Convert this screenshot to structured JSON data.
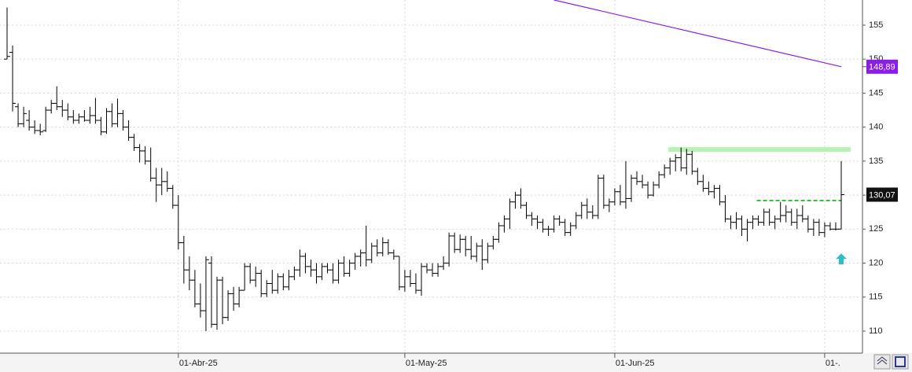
{
  "chart_data": {
    "type": "ohlc",
    "categories": [
      null,
      null,
      null,
      null,
      null,
      null,
      null,
      null,
      null,
      null,
      null,
      null,
      null,
      null,
      null,
      null,
      null,
      null,
      null,
      null,
      null,
      null,
      null,
      null,
      null,
      null,
      null,
      null,
      null,
      null,
      null,
      "01-Abr-25",
      null,
      null,
      null,
      null,
      null,
      null,
      null,
      null,
      null,
      null,
      null,
      null,
      null,
      null,
      null,
      null,
      null,
      null,
      null,
      null,
      null,
      null,
      null,
      null,
      null,
      null,
      null,
      null,
      null,
      null,
      null,
      null,
      null,
      null,
      null,
      null,
      null,
      null,
      null,
      null,
      "01-May-25",
      null,
      null,
      null,
      null,
      null,
      null,
      null,
      null,
      null,
      null,
      null,
      null,
      null,
      null,
      null,
      null,
      null,
      null,
      null,
      null,
      null,
      null,
      null,
      null,
      null,
      null,
      null,
      null,
      null,
      null,
      null,
      null,
      null,
      null,
      null,
      null,
      null,
      "01-Jun-25",
      null,
      null,
      null,
      null,
      null,
      null,
      null,
      null,
      null,
      null,
      null,
      null,
      null,
      null,
      null,
      null,
      null,
      null,
      null,
      null,
      null,
      null,
      null,
      null,
      null,
      null,
      null,
      null,
      null,
      null,
      null,
      null,
      null,
      null,
      null,
      null,
      null,
      "01-."
    ],
    "ohlc": [
      [
        150,
        157.6,
        150,
        150.4
      ],
      [
        151,
        152,
        142.3,
        143.5
      ],
      [
        143,
        143.5,
        140,
        140.5
      ],
      [
        140.5,
        143,
        140,
        142
      ],
      [
        141,
        142.5,
        139.5,
        140
      ],
      [
        140,
        141,
        139,
        139.5
      ],
      [
        139.5,
        140.5,
        138.8,
        139.3
      ],
      [
        139.5,
        143,
        139.3,
        142.5
      ],
      [
        142.5,
        144,
        142,
        143.5
      ],
      [
        143.5,
        146,
        142.5,
        143
      ],
      [
        143,
        144,
        141.5,
        142.5
      ],
      [
        142.5,
        143.5,
        141,
        141.5
      ],
      [
        141.5,
        142.5,
        140.5,
        141
      ],
      [
        141,
        142,
        140.5,
        141.5
      ],
      [
        141.5,
        142.5,
        140.8,
        141
      ],
      [
        141,
        143,
        140.5,
        141.7
      ],
      [
        141.7,
        144.3,
        140.5,
        141
      ],
      [
        141,
        141.5,
        138.8,
        139.3
      ],
      [
        139.3,
        142.8,
        139,
        142.3
      ],
      [
        142.3,
        143.5,
        140,
        140.5
      ],
      [
        140.5,
        144.2,
        140,
        142
      ],
      [
        142,
        142.5,
        139.5,
        140
      ],
      [
        140,
        141,
        138,
        138.5
      ],
      [
        138.5,
        139,
        136.5,
        137
      ],
      [
        137,
        137.5,
        134.8,
        136.5
      ],
      [
        136.5,
        137.2,
        134.5,
        135
      ],
      [
        135,
        137,
        132,
        132.5
      ],
      [
        132.5,
        134,
        129,
        131.5
      ],
      [
        131.5,
        134,
        130,
        132
      ],
      [
        132,
        133.5,
        130.5,
        131
      ],
      [
        131,
        131.5,
        128,
        128.5
      ],
      [
        128.5,
        130,
        122,
        123
      ],
      [
        123,
        124,
        117,
        119
      ],
      [
        119,
        121,
        116,
        117.5
      ],
      [
        117.5,
        119,
        113.5,
        114
      ],
      [
        114,
        117,
        112,
        113
      ],
      [
        113,
        121,
        110,
        120.5
      ],
      [
        120,
        121,
        110.5,
        111
      ],
      [
        111,
        118,
        110.2,
        117.5
      ],
      [
        117.5,
        118,
        111,
        112
      ],
      [
        112,
        116,
        111.5,
        115.5
      ],
      [
        115.5,
        116.5,
        113,
        114
      ],
      [
        114,
        116.5,
        113.5,
        116
      ],
      [
        116,
        120,
        116,
        119.5
      ],
      [
        119.5,
        120,
        117,
        117.5
      ],
      [
        117.5,
        119.5,
        116.5,
        118.5
      ],
      [
        118.5,
        119,
        115,
        115.5
      ],
      [
        115.5,
        117.5,
        115,
        117
      ],
      [
        117,
        119,
        115.5,
        116
      ],
      [
        116,
        118.5,
        115.5,
        118
      ],
      [
        118,
        118.5,
        116,
        116.5
      ],
      [
        116.5,
        119,
        116,
        118
      ],
      [
        118,
        119.5,
        117.5,
        119
      ],
      [
        119,
        122,
        118,
        121
      ],
      [
        121,
        121.5,
        118.5,
        119.5
      ],
      [
        119.5,
        120.5,
        118,
        119
      ],
      [
        119,
        120,
        117,
        118
      ],
      [
        118,
        120,
        117.5,
        119.5
      ],
      [
        119.5,
        120,
        118.5,
        119
      ],
      [
        119,
        120,
        117,
        117.5
      ],
      [
        117.5,
        120.5,
        117,
        120
      ],
      [
        120,
        121,
        118,
        118.5
      ],
      [
        118.5,
        120.5,
        118,
        120
      ],
      [
        120,
        121.5,
        119,
        121
      ],
      [
        121,
        122,
        119.5,
        121.5
      ],
      [
        121.5,
        125.5,
        119.5,
        120.5
      ],
      [
        120.5,
        123,
        120,
        122.5
      ],
      [
        122.5,
        123.5,
        121,
        121.5
      ],
      [
        121.5,
        123.8,
        121,
        123
      ],
      [
        123,
        123.5,
        121.2,
        121.5
      ],
      [
        121.5,
        122,
        120.5,
        121
      ],
      [
        121,
        121,
        116,
        116.5
      ],
      [
        116.5,
        119,
        115.8,
        118
      ],
      [
        118,
        119,
        116.5,
        117
      ],
      [
        117,
        118.5,
        115.5,
        116
      ],
      [
        116,
        120,
        115.2,
        119.5
      ],
      [
        119.5,
        120,
        118.5,
        119
      ],
      [
        119,
        120,
        118,
        118.5
      ],
      [
        118.5,
        120,
        118,
        119.5
      ],
      [
        119.5,
        121,
        119,
        120
      ],
      [
        120,
        124.5,
        119.5,
        124
      ],
      [
        124,
        124.5,
        121.5,
        122
      ],
      [
        122,
        124.2,
        121.5,
        123.5
      ],
      [
        123.5,
        124,
        121,
        122
      ],
      [
        122,
        124,
        120.5,
        121
      ],
      [
        121,
        123,
        120.2,
        122.5
      ],
      [
        122.5,
        123.5,
        119,
        120.5
      ],
      [
        120.5,
        123,
        120,
        122.5
      ],
      [
        122.5,
        124,
        122,
        123.5
      ],
      [
        123.5,
        126,
        123,
        125.5
      ],
      [
        125.5,
        127,
        124.5,
        126.5
      ],
      [
        126.5,
        129.5,
        125,
        129
      ],
      [
        129,
        130.5,
        128,
        130
      ],
      [
        130,
        131,
        128,
        128.5
      ],
      [
        128.5,
        129,
        126.5,
        127
      ],
      [
        127,
        127.5,
        125.5,
        126.5
      ],
      [
        126.5,
        127,
        125,
        126
      ],
      [
        126,
        126.5,
        124.5,
        125
      ],
      [
        125,
        125.5,
        124,
        125
      ],
      [
        125,
        127,
        124.5,
        126.5
      ],
      [
        126.5,
        127,
        125.5,
        126
      ],
      [
        126,
        126.5,
        124,
        124.5
      ],
      [
        124.5,
        126,
        124,
        125.5
      ],
      [
        125.5,
        127.5,
        125,
        127
      ],
      [
        127,
        129,
        126.5,
        128.5
      ],
      [
        128.5,
        129.5,
        126.5,
        127.5
      ],
      [
        127.5,
        128.5,
        126.5,
        127
      ],
      [
        127,
        133,
        126.5,
        132.5
      ],
      [
        132.5,
        133,
        128,
        128.5
      ],
      [
        128.5,
        129.5,
        127.5,
        129
      ],
      [
        129,
        131,
        128.5,
        130.5
      ],
      [
        130.5,
        131.5,
        128.5,
        129
      ],
      [
        129,
        135,
        128,
        129.5
      ],
      [
        129.5,
        133,
        129,
        132.5
      ],
      [
        132.5,
        133.5,
        131.5,
        132
      ],
      [
        132,
        133,
        131,
        131.5
      ],
      [
        131.5,
        132,
        129.5,
        130
      ],
      [
        130,
        132,
        129.8,
        131.5
      ],
      [
        131.5,
        133.5,
        131,
        133
      ],
      [
        133,
        134.5,
        132.5,
        134
      ],
      [
        134,
        135.5,
        133,
        135
      ],
      [
        135,
        136,
        133.5,
        135.5
      ],
      [
        135.5,
        137,
        133.5,
        134
      ],
      [
        134,
        136.8,
        133,
        136
      ],
      [
        136,
        136.5,
        133,
        133.5
      ],
      [
        133.5,
        134,
        131.5,
        132
      ],
      [
        132,
        133,
        130.5,
        131
      ],
      [
        131,
        132,
        130,
        130.5
      ],
      [
        130.5,
        131.5,
        129.5,
        131
      ],
      [
        131,
        131.5,
        128.5,
        129
      ],
      [
        129,
        130,
        126,
        126.5
      ],
      [
        126.5,
        127,
        125,
        126
      ],
      [
        126,
        127.5,
        125,
        126.5
      ],
      [
        126.5,
        127,
        124,
        125
      ],
      [
        125,
        126.5,
        123.2,
        126
      ],
      [
        126,
        127,
        125,
        126.5
      ],
      [
        126.5,
        127,
        125.5,
        126
      ],
      [
        126,
        128,
        125.5,
        127.5
      ],
      [
        127.5,
        128,
        125.5,
        126
      ],
      [
        126,
        127,
        125,
        126.5
      ],
      [
        126.5,
        129,
        126,
        127
      ],
      [
        127,
        128.5,
        126,
        127.5
      ],
      [
        127.5,
        128,
        125.5,
        126
      ],
      [
        126,
        128,
        125,
        127
      ],
      [
        127,
        128.5,
        126,
        126.5
      ],
      [
        126.5,
        127,
        124.5,
        125
      ],
      [
        125,
        126.5,
        124,
        126
      ],
      [
        126,
        126.5,
        124,
        124.5
      ],
      [
        124.5,
        126,
        123.8,
        125.5
      ],
      [
        125.5,
        126,
        124.8,
        125
      ],
      [
        125,
        126,
        124.8,
        125
      ],
      [
        125,
        135,
        125,
        130.07
      ]
    ],
    "color": "#000000",
    "ylim": [
      106.76,
      158.7
    ],
    "yticks": [
      110,
      115,
      120,
      125,
      130,
      135,
      140,
      145,
      150,
      155
    ],
    "grid": true,
    "last_label": "130,07",
    "trendline": {
      "start_index": 99,
      "start_value": 158.7,
      "end_index": 151,
      "end_value": 148.89,
      "label": "148,89",
      "color": "#8a1ee6"
    },
    "resistance": {
      "value": 136.7,
      "from_index": 120,
      "to_index": 151,
      "color": "#b6f2b0"
    },
    "support": {
      "value": 129.2,
      "from_index": 136,
      "to_index": 151,
      "color": "#2ec82e"
    },
    "signal": {
      "index": 151,
      "value": 120.5,
      "color": "#2bbfc4"
    }
  }
}
